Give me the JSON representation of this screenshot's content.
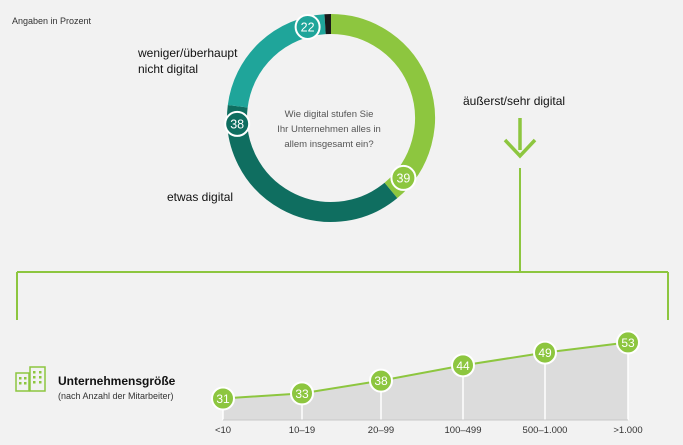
{
  "note": "Angaben in Prozent",
  "colors": {
    "green": "#8dc63f",
    "teal_light": "#1fa59a",
    "teal_dark": "#0f6e60",
    "dark": "#1a1a1a",
    "area": "#dcdcdc",
    "background": "#f2f2f2"
  },
  "chart_data": [
    {
      "type": "pie",
      "subtype": "donut",
      "question": "Wie digital stufen Sie Ihr Unternehmen alles in allem insgesamt ein?",
      "question_lines": [
        "Wie digital stufen Sie",
        "Ihr Unternehmen alles in",
        "allem insgesamt ein?"
      ],
      "slices": [
        {
          "label": "äußerst/sehr digital",
          "value": 39,
          "color": "#8dc63f"
        },
        {
          "label": "etwas digital",
          "value": 38,
          "color": "#0f6e60"
        },
        {
          "label": "weniger/überhaupt nicht digital",
          "label_lines": [
            "weniger/überhaupt",
            "nicht digital"
          ],
          "value": 22,
          "color": "#1fa59a"
        },
        {
          "label": "",
          "value": 1,
          "color": "#1a1a1a"
        }
      ]
    },
    {
      "type": "area",
      "title": "Unternehmensgröße",
      "subtitle": "(nach Anzahl der Mitarbeiter)",
      "categories": [
        "<10",
        "10–19",
        "20–99",
        "100–499",
        "500–1.000",
        ">1.000"
      ],
      "values": [
        31,
        33,
        38,
        44,
        49,
        53
      ],
      "icon": "office-buildings-icon"
    }
  ]
}
